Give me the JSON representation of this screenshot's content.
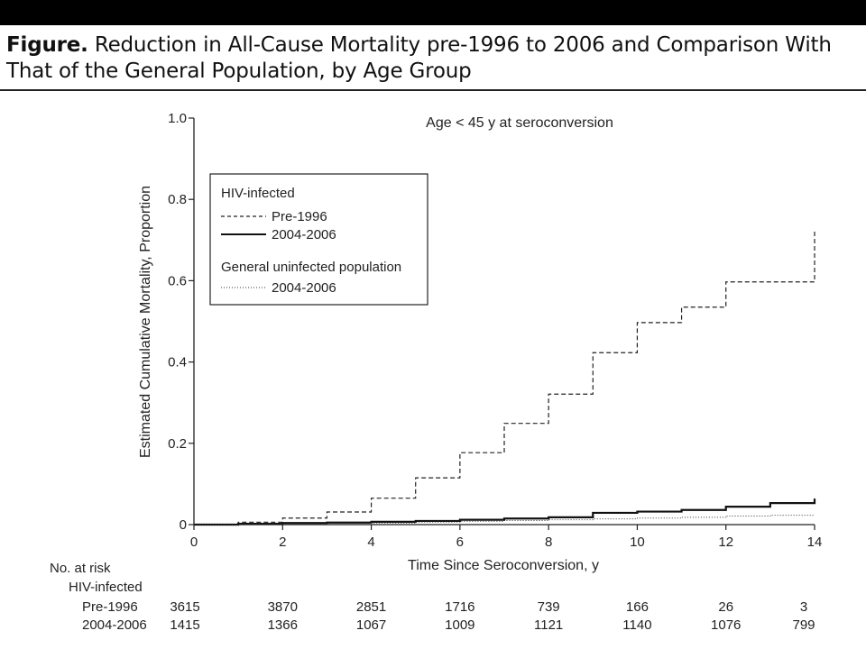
{
  "figure": {
    "title_lead": "Figure.",
    "title_text": " Reduction in All-Cause Mortality pre-1996 to 2006 and Comparison With That of the General Population, by Age Group"
  },
  "chart_data": {
    "type": "line",
    "panel_label": "Age < 45 y at seroconversion",
    "xlabel": "Time Since Seroconversion, y",
    "ylabel": "Estimated Cumulative Mortality, Proportion",
    "xlim": [
      0,
      14
    ],
    "ylim": [
      0,
      1.0
    ],
    "x_ticks": [
      0,
      2,
      4,
      6,
      8,
      10,
      12,
      14
    ],
    "y_ticks": [
      0,
      0.2,
      0.4,
      0.6,
      0.8,
      1.0
    ],
    "y_tick_labels": [
      "0",
      "0.2",
      "0.4",
      "0.6",
      "0.8",
      "1.0"
    ],
    "grid": false,
    "legend": {
      "placement": "top-left",
      "group1_title": "HIV-infected",
      "group2_title": "General uninfected population"
    },
    "series": [
      {
        "name": "Pre-1996",
        "group": "HIV-infected",
        "style": "dashed",
        "step": true,
        "x": [
          0,
          1,
          2,
          3,
          4,
          5,
          6,
          7,
          8,
          9,
          10,
          11,
          12,
          14
        ],
        "y": [
          0,
          0.006,
          0.016,
          0.031,
          0.065,
          0.115,
          0.177,
          0.249,
          0.321,
          0.423,
          0.497,
          0.535,
          0.597,
          0.725
        ]
      },
      {
        "name": "2004-2006",
        "group": "HIV-infected",
        "style": "solid",
        "step": true,
        "x": [
          0,
          1,
          2,
          3,
          4,
          5,
          6,
          7,
          8,
          9,
          10,
          11,
          12,
          13,
          14
        ],
        "y": [
          0,
          0.002,
          0.004,
          0.005,
          0.007,
          0.009,
          0.012,
          0.015,
          0.018,
          0.029,
          0.032,
          0.036,
          0.044,
          0.053,
          0.064
        ]
      },
      {
        "name": "2004-2006",
        "group": "General uninfected population",
        "style": "dotted",
        "step": true,
        "x": [
          0,
          1,
          2,
          3,
          4,
          5,
          6,
          7,
          8,
          9,
          10,
          11,
          12,
          13,
          14
        ],
        "y": [
          0,
          0.001,
          0.002,
          0.003,
          0.004,
          0.006,
          0.008,
          0.01,
          0.012,
          0.014,
          0.016,
          0.018,
          0.021,
          0.023,
          0.024
        ]
      }
    ],
    "risk_table": {
      "title": "No. at risk",
      "group_label": "HIV-infected",
      "times": [
        0,
        2,
        4,
        6,
        8,
        10,
        12,
        14
      ],
      "rows": [
        {
          "label": "Pre-1996",
          "values": [
            "3615",
            "3870",
            "2851",
            "1716",
            "739",
            "166",
            "26",
            "3"
          ]
        },
        {
          "label": "2004-2006",
          "values": [
            "1415",
            "1366",
            "1067",
            "1009",
            "1121",
            "1140",
            "1076",
            "799"
          ]
        }
      ]
    }
  }
}
